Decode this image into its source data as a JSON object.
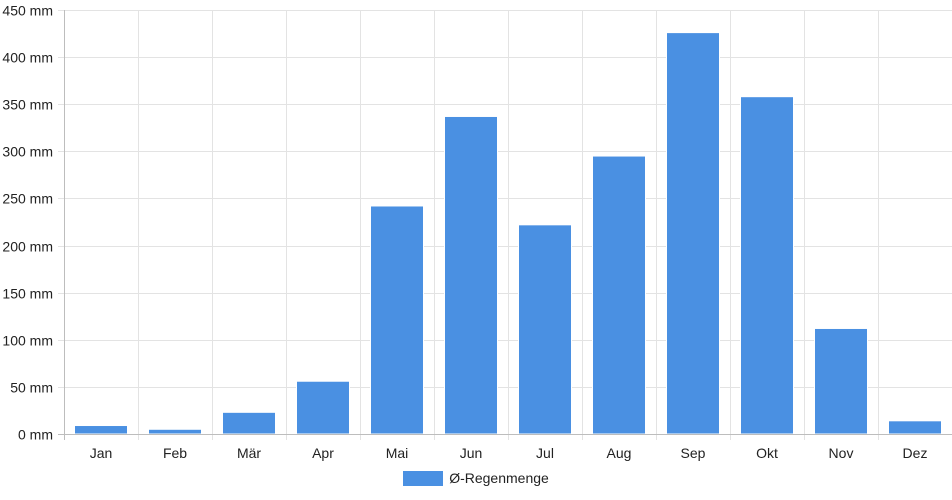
{
  "chart_data": {
    "type": "bar",
    "categories": [
      "Jan",
      "Feb",
      "Mär",
      "Apr",
      "Mai",
      "Jun",
      "Jul",
      "Aug",
      "Sep",
      "Okt",
      "Nov",
      "Dez"
    ],
    "series": [
      {
        "name": "Ø-Regenmenge",
        "values": [
          9,
          5,
          23,
          56,
          242,
          337,
          222,
          295,
          426,
          358,
          112,
          14
        ],
        "color": "#4a90e2"
      }
    ],
    "ylim": [
      0,
      450
    ],
    "yticks": [
      0,
      50,
      100,
      150,
      200,
      250,
      300,
      350,
      400,
      450
    ],
    "y_unit": "mm",
    "grid": true,
    "legend_position": "bottom-center"
  }
}
